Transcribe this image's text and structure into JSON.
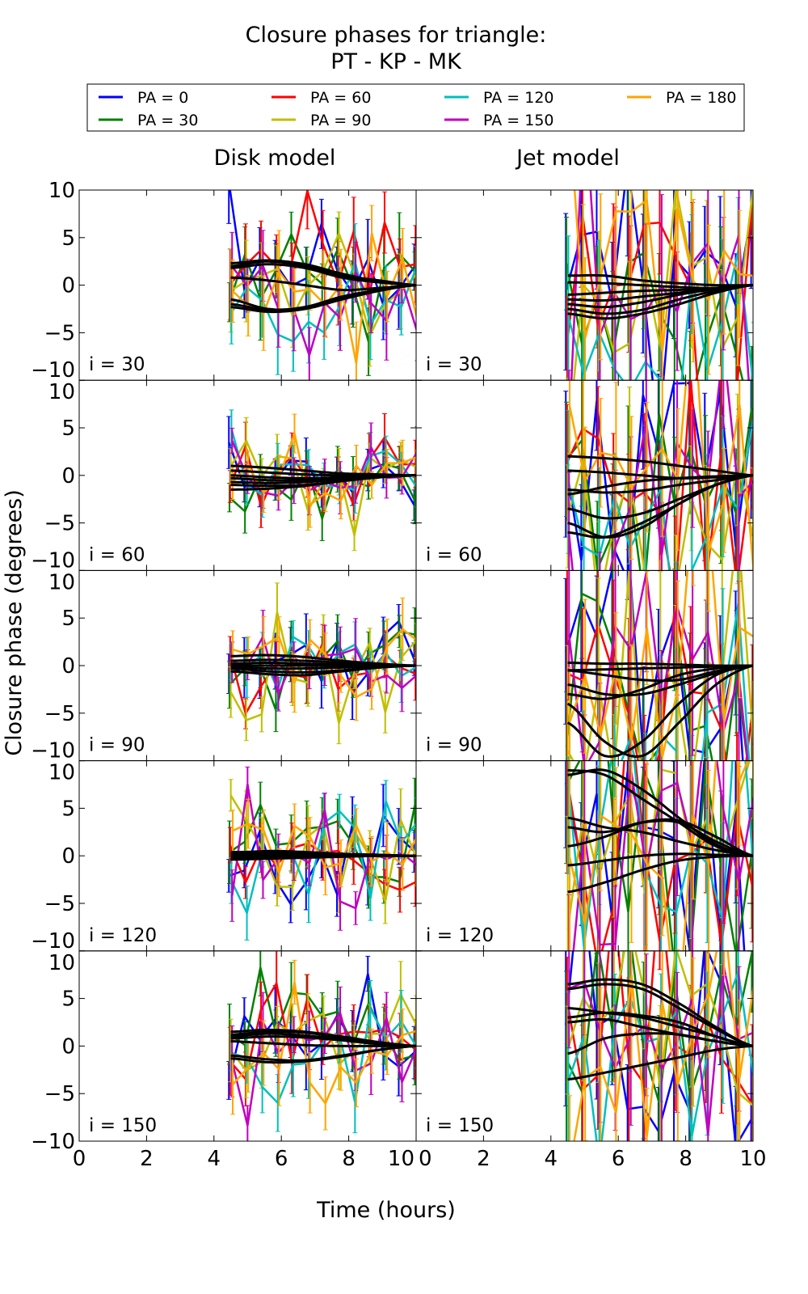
{
  "chart_data": {
    "type": "line",
    "title": "Closure phases for triangle:",
    "subtitle": "PT - KP - MK",
    "xlabel": "Time (hours)",
    "ylabel": "Closure phase (degrees)",
    "xlim": [
      0,
      10
    ],
    "ylim": [
      -10,
      10
    ],
    "xticks": [
      "0",
      "2",
      "4",
      "6",
      "8",
      "10"
    ],
    "yticks": [
      "−10",
      "−5",
      "0",
      "5",
      "10"
    ],
    "columns": [
      "Disk model",
      "Jet model"
    ],
    "legend_placement": "top",
    "series": [
      {
        "name": "PA = 0",
        "color": "#0000ff"
      },
      {
        "name": "PA = 30",
        "color": "#008000"
      },
      {
        "name": "PA = 60",
        "color": "#ff0000"
      },
      {
        "name": "PA = 90",
        "color": "#bfbf00"
      },
      {
        "name": "PA = 120",
        "color": "#00bfbf"
      },
      {
        "name": "PA = 150",
        "color": "#bf00bf"
      },
      {
        "name": "PA = 180",
        "color": "#ffa500"
      }
    ],
    "model_color": "#000000",
    "model_x": [
      4.5,
      5.6,
      6.7,
      7.8,
      8.9,
      10
    ],
    "obs_x_range": [
      4.5,
      10
    ],
    "obs_count": 13,
    "noise_seed": 7,
    "panels": [
      {
        "column": 0,
        "label": "i = 30",
        "noise_sigma": 4,
        "model": [
          [
            2,
            2.5,
            2,
            1,
            0.5,
            0
          ],
          [
            2.3,
            2.6,
            2.2,
            1.2,
            0.4,
            0
          ],
          [
            1.8,
            2.2,
            1.8,
            0.8,
            0.3,
            0
          ],
          [
            0.8,
            0.5,
            0,
            -0.5,
            -0.3,
            0
          ],
          [
            -2,
            -2.6,
            -2.3,
            -1.2,
            -0.5,
            0
          ],
          [
            -2.3,
            -2.8,
            -2.5,
            -1.5,
            -0.6,
            0
          ],
          [
            -1.5,
            -2.5,
            -2.4,
            -1.3,
            -0.5,
            0
          ]
        ]
      },
      {
        "column": 1,
        "label": "i = 30",
        "noise_sigma": 9,
        "model": [
          [
            1,
            1,
            0.5,
            0.2,
            0,
            0
          ],
          [
            -1,
            -0.8,
            -0.6,
            -0.5,
            -0.3,
            0
          ],
          [
            -1.5,
            -1.6,
            -1.2,
            -0.8,
            -0.3,
            0
          ],
          [
            -2.5,
            -3,
            -2.6,
            -1.5,
            -0.6,
            0
          ],
          [
            -3,
            -3.5,
            -3,
            -2,
            -0.8,
            0
          ],
          [
            -2,
            -2.3,
            -1.8,
            -1,
            -0.4,
            0
          ],
          [
            0.3,
            0.2,
            0,
            -0.2,
            -0.3,
            0
          ]
        ]
      },
      {
        "column": 0,
        "label": "i = 60",
        "noise_sigma": 2.5,
        "model": [
          [
            1,
            0.8,
            0.5,
            0.2,
            0.1,
            0
          ],
          [
            0.5,
            0.3,
            0.1,
            0,
            0,
            0
          ],
          [
            -0.3,
            -0.5,
            -0.5,
            -0.3,
            -0.1,
            0
          ],
          [
            -1,
            -1.1,
            -1,
            -0.6,
            -0.2,
            0
          ],
          [
            -1.5,
            -1.4,
            -1.1,
            -0.6,
            -0.2,
            0
          ],
          [
            0,
            -0.2,
            -0.3,
            -0.2,
            -0.1,
            0
          ],
          [
            -0.7,
            -0.8,
            -0.7,
            -0.4,
            -0.1,
            0
          ]
        ]
      },
      {
        "column": 1,
        "label": "i = 60",
        "noise_sigma": 9,
        "model": [
          [
            2,
            1.8,
            1.5,
            1,
            0.5,
            0
          ],
          [
            -1.5,
            -1.8,
            -1.6,
            -1,
            -0.5,
            0
          ],
          [
            -2,
            -1.2,
            -0.6,
            -0.3,
            -0.1,
            0
          ],
          [
            -3.5,
            -4.5,
            -4,
            -2.5,
            -1,
            0
          ],
          [
            -5,
            -6.5,
            -5.5,
            -3,
            -1,
            0
          ],
          [
            -6,
            -6.5,
            -5,
            -3,
            -1,
            0
          ],
          [
            0.5,
            0.3,
            0,
            -0.3,
            -0.2,
            0
          ]
        ]
      },
      {
        "column": 0,
        "label": "i = 90",
        "noise_sigma": 3,
        "model": [
          [
            1,
            1.1,
            0.9,
            0.5,
            0.2,
            0
          ],
          [
            0.5,
            0.6,
            0.5,
            0.3,
            0.1,
            0
          ],
          [
            -0.3,
            -0.6,
            -0.7,
            -0.5,
            -0.2,
            0
          ],
          [
            -0.6,
            -0.9,
            -1,
            -0.6,
            -0.2,
            0
          ],
          [
            0.2,
            0.3,
            0.2,
            0.1,
            0,
            0
          ],
          [
            0,
            0,
            0,
            0,
            0,
            0
          ],
          [
            -0.2,
            -0.3,
            -0.3,
            -0.2,
            -0.1,
            0
          ]
        ]
      },
      {
        "column": 1,
        "label": "i = 90",
        "noise_sigma": 11,
        "model": [
          [
            0.3,
            0.2,
            0.2,
            0.1,
            0,
            0
          ],
          [
            -0.5,
            -0.4,
            -0.3,
            -0.2,
            -0.1,
            0
          ],
          [
            -2,
            -3,
            -3,
            -2,
            -0.8,
            0
          ],
          [
            -4,
            -8,
            -9.5,
            -6,
            -2,
            0
          ],
          [
            -6,
            -9.5,
            -8,
            -4,
            -1,
            0
          ],
          [
            -3,
            -3.5,
            -2.5,
            -1,
            -0.3,
            0
          ],
          [
            -0.5,
            -1,
            -1.5,
            -1.5,
            -0.6,
            0
          ]
        ]
      },
      {
        "column": 0,
        "label": "i = 120",
        "noise_sigma": 3,
        "model": [
          [
            0.4,
            0.4,
            0.3,
            0.2,
            0.1,
            0
          ],
          [
            0.2,
            0.2,
            0.2,
            0.1,
            0,
            0
          ],
          [
            0,
            0,
            0,
            0,
            0,
            0
          ],
          [
            -0.2,
            -0.2,
            -0.1,
            0,
            0,
            0
          ],
          [
            -0.4,
            -0.3,
            -0.2,
            -0.1,
            0,
            0
          ],
          [
            0.3,
            0.5,
            0.4,
            0.2,
            0.1,
            0
          ],
          [
            -0.3,
            -0.2,
            -0.1,
            0,
            0,
            0
          ]
        ]
      },
      {
        "column": 1,
        "label": "i = 120",
        "noise_sigma": 11,
        "model": [
          [
            9,
            8.5,
            6,
            3.5,
            1,
            0
          ],
          [
            8.5,
            9,
            7,
            4,
            1.2,
            0
          ],
          [
            4,
            3,
            2.5,
            1.5,
            0.6,
            0
          ],
          [
            3,
            2.5,
            3.5,
            3.5,
            1.5,
            0
          ],
          [
            1,
            2,
            3.5,
            3.7,
            2,
            0
          ],
          [
            -1,
            -0.5,
            0,
            0.2,
            0.1,
            0
          ],
          [
            -3.8,
            -2.8,
            -1.5,
            -0.5,
            -0.1,
            0
          ]
        ]
      },
      {
        "column": 0,
        "label": "i = 150",
        "noise_sigma": 3.5,
        "model": [
          [
            1.5,
            1.7,
            1.5,
            1,
            0.4,
            0
          ],
          [
            1.2,
            1.5,
            1.4,
            0.9,
            0.4,
            0
          ],
          [
            1,
            1.3,
            1.1,
            0.7,
            0.3,
            0
          ],
          [
            0.8,
            1,
            0.9,
            0.6,
            0.2,
            0
          ],
          [
            -1,
            -1.4,
            -1.5,
            -1,
            -0.4,
            0
          ],
          [
            -1.3,
            -1.7,
            -1.6,
            -1.1,
            -0.4,
            0
          ],
          [
            0.5,
            0.3,
            0.1,
            0,
            0,
            0
          ]
        ]
      },
      {
        "column": 1,
        "label": "i = 150",
        "noise_sigma": 9,
        "model": [
          [
            6.5,
            7,
            6.5,
            4.5,
            2,
            0
          ],
          [
            6,
            6.5,
            6,
            4,
            1.8,
            0
          ],
          [
            4,
            3.5,
            3,
            2,
            1,
            0
          ],
          [
            3,
            3.5,
            3.2,
            2.5,
            1,
            0
          ],
          [
            2.5,
            2.8,
            2,
            1.2,
            0.5,
            0
          ],
          [
            -0.8,
            0.8,
            1.3,
            1.2,
            0.5,
            0
          ],
          [
            -3.5,
            -2.8,
            -2,
            -1.2,
            -0.4,
            0
          ]
        ]
      }
    ]
  }
}
